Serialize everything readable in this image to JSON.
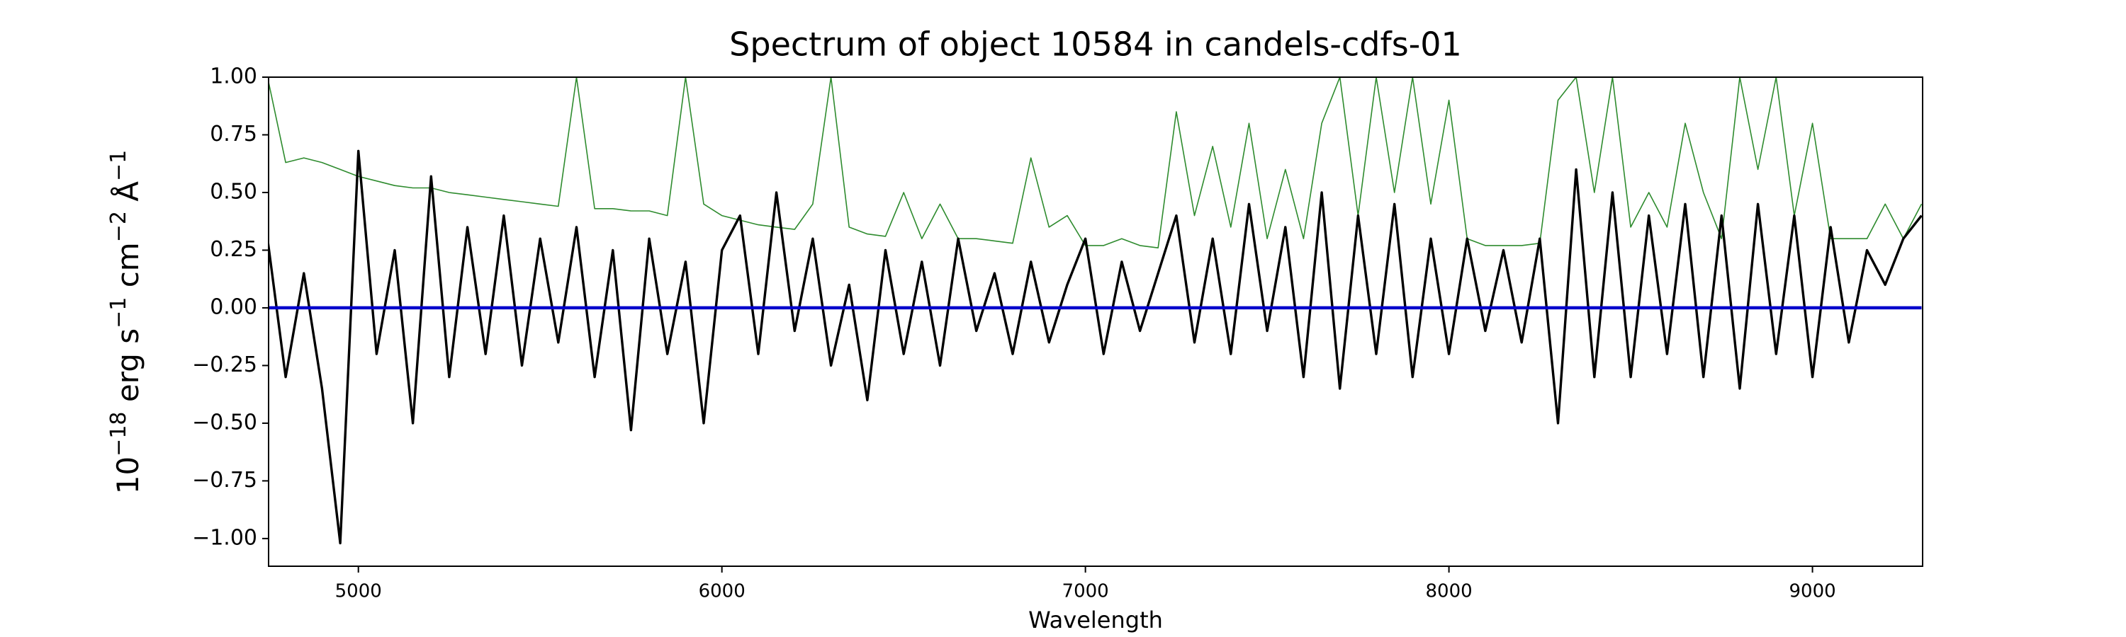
{
  "chart_data": {
    "type": "line",
    "title": "Spectrum of object 10584 in candels-cdfs-01",
    "xlabel": "Wavelength",
    "ylabel_parts": [
      "10",
      "−18",
      " erg s",
      "−1",
      " cm",
      "−2",
      " Å",
      "−1"
    ],
    "x": [
      4750,
      4800,
      4850,
      4900,
      4950,
      5000,
      5050,
      5100,
      5150,
      5200,
      5250,
      5300,
      5350,
      5400,
      5450,
      5500,
      5550,
      5600,
      5650,
      5700,
      5750,
      5800,
      5850,
      5900,
      5950,
      6000,
      6050,
      6100,
      6150,
      6200,
      6250,
      6300,
      6350,
      6400,
      6450,
      6500,
      6550,
      6600,
      6650,
      6700,
      6750,
      6800,
      6850,
      6900,
      6950,
      7000,
      7050,
      7100,
      7150,
      7200,
      7250,
      7300,
      7350,
      7400,
      7450,
      7500,
      7550,
      7600,
      7650,
      7700,
      7750,
      7800,
      7850,
      7900,
      7950,
      8000,
      8050,
      8100,
      8150,
      8200,
      8250,
      8300,
      8350,
      8400,
      8450,
      8500,
      8550,
      8600,
      8650,
      8700,
      8750,
      8800,
      8850,
      8900,
      8950,
      9000,
      9050,
      9100,
      9150,
      9200,
      9250,
      9300
    ],
    "series": [
      {
        "color": "#2e8b2e",
        "values": [
          1.0,
          0.63,
          0.65,
          0.63,
          0.6,
          0.57,
          0.55,
          0.53,
          0.52,
          0.52,
          0.5,
          0.49,
          0.48,
          0.47,
          0.46,
          0.45,
          0.44,
          1.0,
          0.43,
          0.43,
          0.42,
          0.42,
          0.4,
          1.0,
          0.45,
          0.4,
          0.38,
          0.36,
          0.35,
          0.34,
          0.45,
          1.0,
          0.35,
          0.32,
          0.31,
          0.5,
          0.3,
          0.45,
          0.3,
          0.3,
          0.29,
          0.28,
          0.65,
          0.35,
          0.4,
          0.27,
          0.27,
          0.3,
          0.27,
          0.26,
          0.85,
          0.4,
          0.7,
          0.35,
          0.8,
          0.3,
          0.6,
          0.3,
          0.8,
          1.0,
          0.4,
          1.0,
          0.5,
          1.0,
          0.45,
          0.9,
          0.3,
          0.27,
          0.27,
          0.27,
          0.28,
          0.9,
          1.0,
          0.5,
          1.0,
          0.35,
          0.5,
          0.35,
          0.8,
          0.5,
          0.3,
          1.0,
          0.6,
          1.0,
          0.4,
          0.8,
          0.3,
          0.3,
          0.3,
          0.45,
          0.3,
          0.45
        ]
      },
      {
        "color": "#000000",
        "values": [
          0.3,
          -0.3,
          0.15,
          -0.35,
          -1.02,
          0.68,
          -0.2,
          0.25,
          -0.5,
          0.57,
          -0.3,
          0.35,
          -0.2,
          0.4,
          -0.25,
          0.3,
          -0.15,
          0.35,
          -0.3,
          0.25,
          -0.53,
          0.3,
          -0.2,
          0.2,
          -0.5,
          0.25,
          0.4,
          -0.2,
          0.5,
          -0.1,
          0.3,
          -0.25,
          0.1,
          -0.4,
          0.25,
          -0.2,
          0.2,
          -0.25,
          0.3,
          -0.1,
          0.15,
          -0.2,
          0.2,
          -0.15,
          0.1,
          0.3,
          -0.2,
          0.2,
          -0.1,
          0.15,
          0.4,
          -0.15,
          0.3,
          -0.2,
          0.45,
          -0.1,
          0.35,
          -0.3,
          0.5,
          -0.35,
          0.4,
          -0.2,
          0.45,
          -0.3,
          0.3,
          -0.2,
          0.3,
          -0.1,
          0.25,
          -0.15,
          0.3,
          -0.5,
          0.6,
          -0.3,
          0.5,
          -0.3,
          0.4,
          -0.2,
          0.45,
          -0.3,
          0.4,
          -0.35,
          0.45,
          -0.2,
          0.4,
          -0.3,
          0.35,
          -0.15,
          0.25,
          0.1,
          0.3,
          0.4
        ]
      },
      {
        "color": "#0000cc",
        "values": [
          0,
          0,
          0,
          0,
          0,
          0,
          0,
          0,
          0,
          0,
          0,
          0,
          0,
          0,
          0,
          0,
          0,
          0,
          0,
          0,
          0,
          0,
          0,
          0,
          0,
          0,
          0,
          0,
          0,
          0,
          0,
          0,
          0,
          0,
          0,
          0,
          0,
          0,
          0,
          0,
          0,
          0,
          0,
          0,
          0,
          0,
          0,
          0,
          0,
          0,
          0,
          0,
          0,
          0,
          0,
          0,
          0,
          0,
          0,
          0,
          0,
          0,
          0,
          0,
          0,
          0,
          0,
          0,
          0,
          0,
          0,
          0,
          0,
          0,
          0,
          0,
          0,
          0,
          0,
          0,
          0,
          0,
          0,
          0,
          0,
          0,
          0,
          0,
          0,
          0,
          0,
          0
        ]
      }
    ],
    "xlim": [
      4753,
      9303
    ],
    "ylim": [
      -1.12,
      1.0
    ],
    "xticks": [
      5000,
      6000,
      7000,
      8000,
      9000
    ],
    "yticks": [
      {
        "value": 1.0,
        "label": "1.00"
      },
      {
        "value": 0.75,
        "label": "0.75"
      },
      {
        "value": 0.5,
        "label": "0.50"
      },
      {
        "value": 0.25,
        "label": "0.25"
      },
      {
        "value": 0,
        "label": "0.00"
      },
      {
        "value": -0.25,
        "label": "−0.25"
      },
      {
        "value": -0.5,
        "label": "−0.50"
      },
      {
        "value": -0.75,
        "label": "−0.75"
      },
      {
        "value": -1.0,
        "label": "−1.00"
      }
    ],
    "grid": false
  }
}
